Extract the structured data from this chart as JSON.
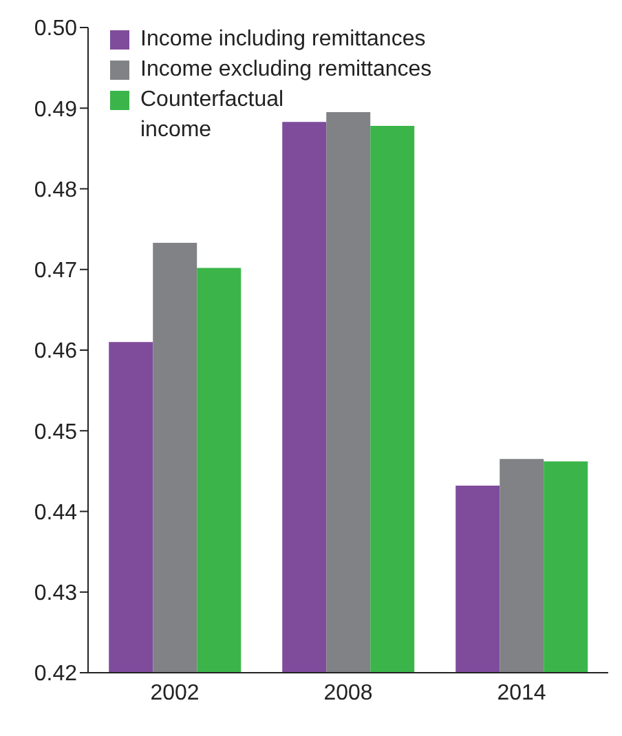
{
  "chart_data": {
    "type": "bar",
    "categories": [
      "2002",
      "2008",
      "2014"
    ],
    "series": [
      {
        "name": "Income including remittances",
        "color": "#7f4c9c",
        "values": [
          0.461,
          0.4883,
          0.4432
        ]
      },
      {
        "name": "Income excluding remittances",
        "color": "#808285",
        "values": [
          0.4733,
          0.4895,
          0.4465
        ]
      },
      {
        "name": "Counterfactual income",
        "color": "#3bb54a",
        "values": [
          0.4702,
          0.4878,
          0.4462
        ]
      }
    ],
    "ylim": [
      0.42,
      0.5
    ],
    "yticks": [
      {
        "value": 0.42,
        "label": "0.42"
      },
      {
        "value": 0.43,
        "label": "0.43"
      },
      {
        "value": 0.44,
        "label": "0.44"
      },
      {
        "value": 0.45,
        "label": "0.45"
      },
      {
        "value": 0.46,
        "label": "0.46"
      },
      {
        "value": 0.47,
        "label": "0.47"
      },
      {
        "value": 0.48,
        "label": "0.48"
      },
      {
        "value": 0.49,
        "label": "0.49"
      },
      {
        "value": 0.5,
        "label": "0.50"
      }
    ],
    "grid": false,
    "legend": "top left"
  }
}
